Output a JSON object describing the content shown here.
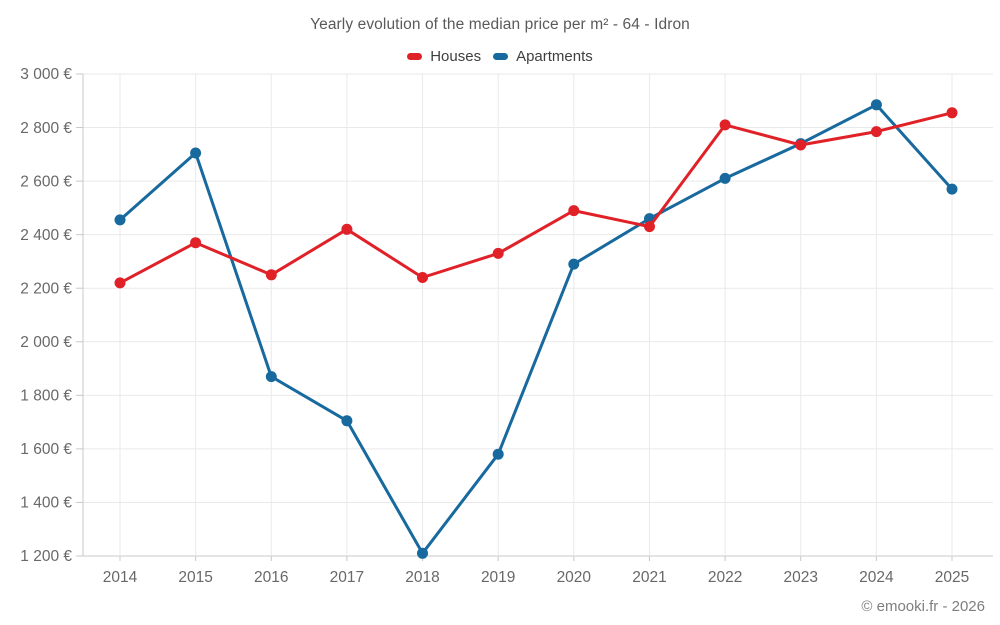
{
  "chart_data": {
    "type": "line",
    "title": "Yearly evolution of the median price per m² - 64 - Idron",
    "footer": "© emooki.fr - 2026",
    "x": [
      2014,
      2015,
      2016,
      2017,
      2018,
      2019,
      2020,
      2021,
      2022,
      2023,
      2024,
      2025
    ],
    "x_labels": [
      "2014",
      "2015",
      "2016",
      "2017",
      "2018",
      "2019",
      "2020",
      "2021",
      "2022",
      "2023",
      "2024",
      "2025"
    ],
    "series": [
      {
        "name": "Houses",
        "color": "#e02128",
        "values": [
          2220,
          2370,
          2250,
          2420,
          2240,
          2330,
          2490,
          2430,
          2810,
          2735,
          2785,
          2855
        ]
      },
      {
        "name": "Apartments",
        "color": "#17699e",
        "values": [
          2455,
          2705,
          1870,
          1705,
          1210,
          1580,
          2290,
          2460,
          2610,
          2740,
          2885,
          2570
        ]
      }
    ],
    "ylim": [
      1200,
      3000
    ],
    "ytick_values": [
      1200,
      1400,
      1600,
      1800,
      2000,
      2200,
      2400,
      2600,
      2800,
      3000
    ],
    "ytick_labels": [
      "1 200 €",
      "1 400 €",
      "1 600 €",
      "1 800 €",
      "2 000 €",
      "2 200 €",
      "2 400 €",
      "2 600 €",
      "2 800 €",
      "3 000 €"
    ],
    "legend_position": "top",
    "grid": true,
    "grid_color": "#e9e9e9",
    "axis_color": "#c8c8c8",
    "tick_text_color": "#686868"
  }
}
